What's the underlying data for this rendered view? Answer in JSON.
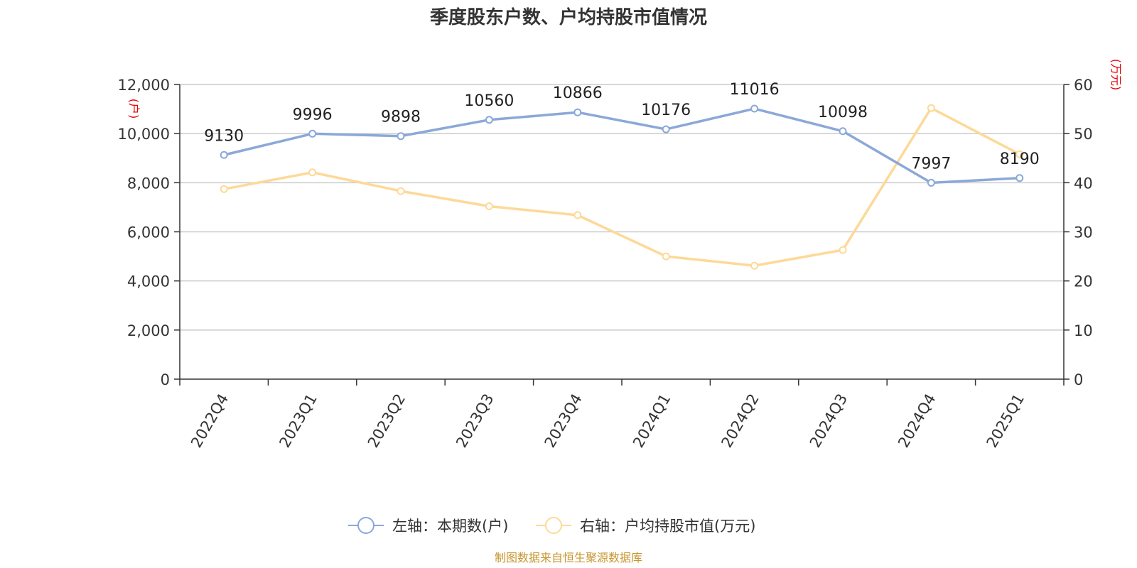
{
  "chart_data": {
    "type": "line",
    "title": "季度股东户数、户均持股市值情况",
    "categories": [
      "2022Q4",
      "2023Q1",
      "2023Q2",
      "2023Q3",
      "2023Q4",
      "2024Q1",
      "2024Q2",
      "2024Q3",
      "2024Q4",
      "2025Q1"
    ],
    "series": [
      {
        "name": "左轴：本期数(户)",
        "axis": "left",
        "color": "#8ba8d8",
        "values": [
          9130,
          9996,
          9898,
          10560,
          10866,
          10176,
          11016,
          10098,
          7997,
          8190
        ],
        "data_labels": [
          "9130",
          "9996",
          "9898",
          "10560",
          "10866",
          "10176",
          "11016",
          "10098",
          "7997",
          "8190"
        ]
      },
      {
        "name": "右轴：户均持股市值(万元)",
        "axis": "right",
        "color": "#fdd998",
        "values": [
          38.7,
          42.1,
          38.3,
          35.2,
          33.4,
          25.0,
          23.1,
          26.3,
          55.2,
          45.8
        ]
      }
    ],
    "left_axis": {
      "unit": "(户)",
      "ylim": [
        0,
        12000
      ],
      "ticks": [
        0,
        2000,
        4000,
        6000,
        8000,
        10000,
        12000
      ],
      "tick_labels": [
        "0",
        "2,000",
        "4,000",
        "6,000",
        "8,000",
        "10,000",
        "12,000"
      ]
    },
    "right_axis": {
      "unit": "(万元)",
      "ylim": [
        0,
        60
      ],
      "ticks": [
        0,
        10,
        20,
        30,
        40,
        50,
        60
      ],
      "tick_labels": [
        "0",
        "10",
        "20",
        "30",
        "40",
        "50",
        "60"
      ]
    },
    "grid": true,
    "legend_position": "bottom-center"
  },
  "source_text": "制图数据来自恒生聚源数据库"
}
